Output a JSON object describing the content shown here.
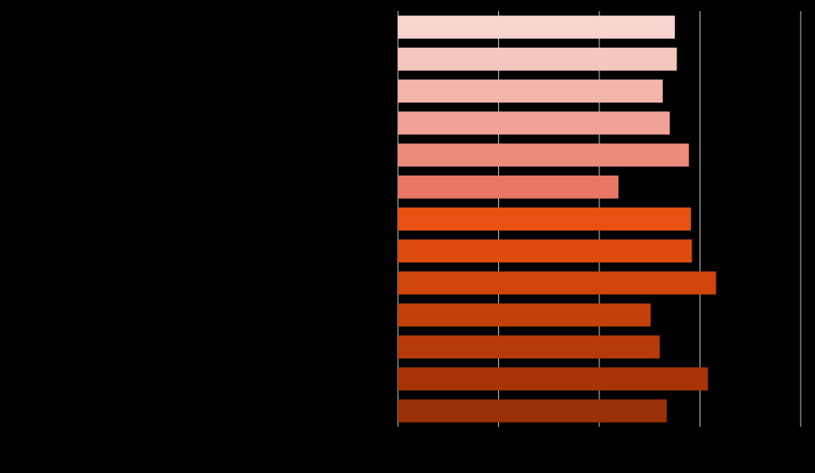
{
  "chart_data": {
    "type": "barh",
    "categories": [
      null,
      null,
      null,
      null,
      null,
      null,
      null,
      null,
      null,
      null,
      null,
      null,
      null
    ],
    "values": [
      2.75,
      2.77,
      2.63,
      2.7,
      2.89,
      2.19,
      2.91,
      2.92,
      3.16,
      2.51,
      2.6,
      3.08,
      2.67
    ],
    "colors": [
      "#f7d4d0",
      "#f5c5be",
      "#f2b5aa",
      "#efa295",
      "#ed8b7c",
      "#ea7766",
      "#e85112",
      "#dd4b0e",
      "#cf450c",
      "#c4400b",
      "#b6390a",
      "#a83309",
      "#9a2f08"
    ],
    "xlim": [
      0,
      4
    ],
    "xticks": [
      0,
      1,
      2,
      3,
      4
    ],
    "grid": true
  }
}
